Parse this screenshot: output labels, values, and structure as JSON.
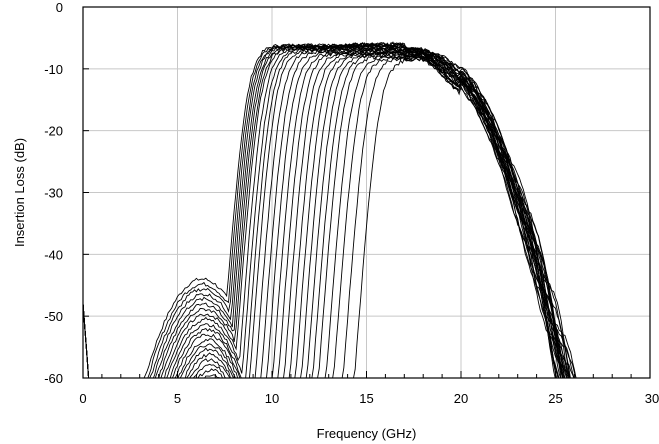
{
  "chart_data": {
    "type": "line",
    "title": "",
    "xlabel": "Frequency (GHz)",
    "ylabel": "Insertion Loss (dB)",
    "xlim": [
      0,
      30
    ],
    "ylim": [
      -60,
      0
    ],
    "xticks": [
      0,
      5,
      10,
      15,
      20,
      25,
      30
    ],
    "yticks": [
      0,
      -10,
      -20,
      -30,
      -40,
      -50,
      -60
    ],
    "x_tick_labels": [
      "0",
      "5",
      "10",
      "15",
      "20",
      "25",
      "30"
    ],
    "y_tick_labels": [
      "0",
      "-10",
      "-20",
      "-30",
      "-40",
      "-50",
      "-60"
    ],
    "grid": true,
    "legend": "none",
    "series_count": 28,
    "lower_passband_edge_range_ghz": [
      8.0,
      15.0
    ],
    "upper_passband_edge_ghz": 20.5,
    "passband_peak_db": -5.5,
    "series": [
      {
        "lower_edge_ghz": 8.0,
        "peak_db": -5.6
      },
      {
        "lower_edge_ghz": 8.1,
        "peak_db": -5.6
      },
      {
        "lower_edge_ghz": 8.2,
        "peak_db": -5.7
      },
      {
        "lower_edge_ghz": 8.3,
        "peak_db": -5.7
      },
      {
        "lower_edge_ghz": 8.4,
        "peak_db": -5.8
      },
      {
        "lower_edge_ghz": 8.5,
        "peak_db": -5.8
      },
      {
        "lower_edge_ghz": 8.6,
        "peak_db": -5.9
      },
      {
        "lower_edge_ghz": 8.7,
        "peak_db": -6.0
      },
      {
        "lower_edge_ghz": 8.9,
        "peak_db": -6.0
      },
      {
        "lower_edge_ghz": 9.1,
        "peak_db": -6.1
      },
      {
        "lower_edge_ghz": 9.3,
        "peak_db": -6.2
      },
      {
        "lower_edge_ghz": 9.5,
        "peak_db": -6.3
      },
      {
        "lower_edge_ghz": 9.8,
        "peak_db": -6.4
      },
      {
        "lower_edge_ghz": 10.1,
        "peak_db": -6.5
      },
      {
        "lower_edge_ghz": 10.4,
        "peak_db": -6.6
      },
      {
        "lower_edge_ghz": 10.7,
        "peak_db": -6.7
      },
      {
        "lower_edge_ghz": 11.0,
        "peak_db": -6.8
      },
      {
        "lower_edge_ghz": 11.3,
        "peak_db": -6.9
      },
      {
        "lower_edge_ghz": 11.6,
        "peak_db": -7.0
      },
      {
        "lower_edge_ghz": 11.9,
        "peak_db": -7.1
      },
      {
        "lower_edge_ghz": 12.2,
        "peak_db": -7.2
      },
      {
        "lower_edge_ghz": 12.5,
        "peak_db": -7.3
      },
      {
        "lower_edge_ghz": 12.8,
        "peak_db": -7.4
      },
      {
        "lower_edge_ghz": 13.1,
        "peak_db": -7.5
      },
      {
        "lower_edge_ghz": 13.5,
        "peak_db": -7.6
      },
      {
        "lower_edge_ghz": 13.9,
        "peak_db": -7.7
      },
      {
        "lower_edge_ghz": 14.4,
        "peak_db": -7.8
      },
      {
        "lower_edge_ghz": 15.0,
        "peak_db": -7.9
      }
    ]
  }
}
